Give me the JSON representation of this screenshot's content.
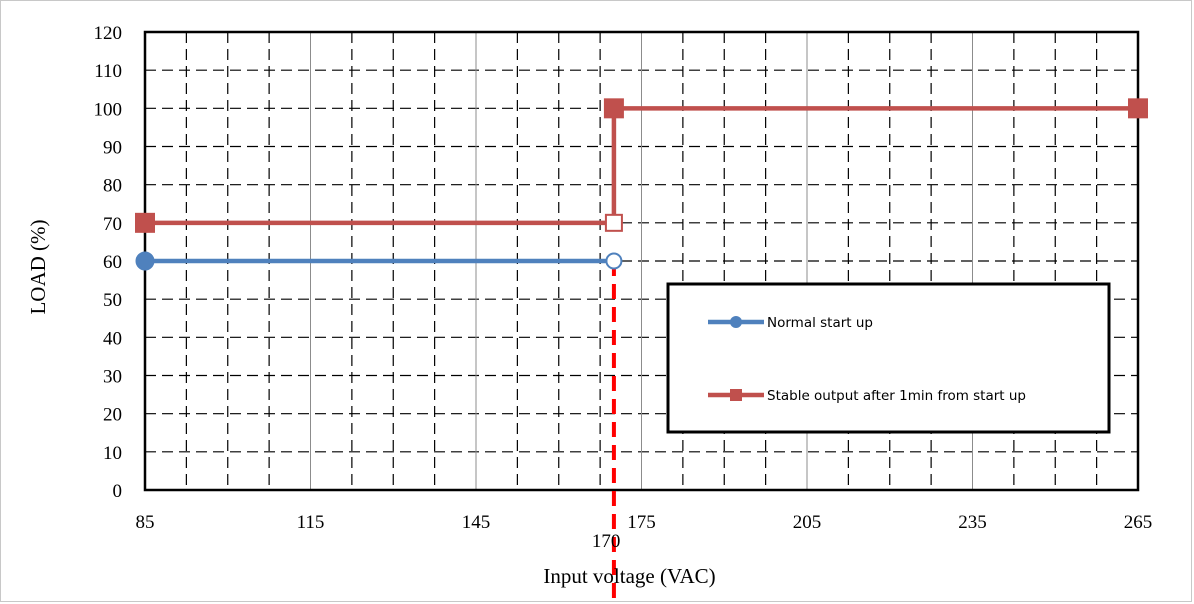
{
  "chart_data": {
    "type": "line",
    "title": "",
    "xlabel": "Input voltage (VAC)",
    "ylabel": "LOAD (%)",
    "xlim": [
      85,
      265
    ],
    "ylim": [
      0,
      120
    ],
    "x_ticks": [
      85,
      115,
      145,
      175,
      205,
      235,
      265
    ],
    "y_ticks": [
      0,
      10,
      20,
      30,
      40,
      50,
      60,
      70,
      80,
      90,
      100,
      110,
      120
    ],
    "grid": "dashed",
    "legend_position": "center-right",
    "threshold_line": {
      "x": 170,
      "label": "170",
      "color": "#ff0000",
      "style": "dashed"
    },
    "series": [
      {
        "name": "Normal start up",
        "color": "#4f81bd",
        "marker": "circle",
        "x": [
          85,
          170
        ],
        "y": [
          60,
          60
        ],
        "open_marker_index": [
          1
        ]
      },
      {
        "name": "Stable output after 1min from start up",
        "color": "#c0504d",
        "marker": "square",
        "x": [
          85,
          170,
          170,
          265
        ],
        "y": [
          70,
          70,
          100,
          100
        ],
        "open_marker_index": [
          1
        ]
      }
    ]
  }
}
